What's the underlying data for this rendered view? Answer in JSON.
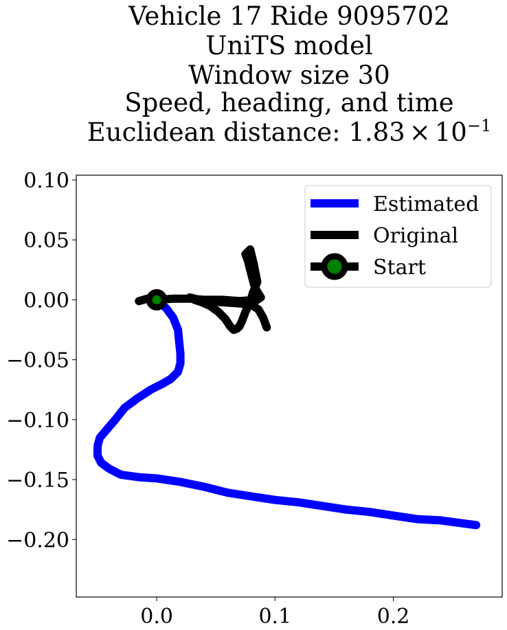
{
  "chart_data": {
    "type": "line",
    "title_lines": [
      "Vehicle 17 Ride 9095702",
      "UniTS model",
      "Window size 30",
      "Speed, heading, and time"
    ],
    "title_distance_prefix": "Euclidean distance: ",
    "title_distance_mantissa": "1.83",
    "title_distance_times": "×",
    "title_distance_base": "10",
    "title_distance_exponent": "−1",
    "xlabel": "",
    "ylabel": "",
    "xlim": [
      -0.068,
      0.292
    ],
    "ylim": [
      -0.248,
      0.104
    ],
    "xticks": [
      {
        "value": 0.0,
        "label": "0.0"
      },
      {
        "value": 0.1,
        "label": "0.1"
      },
      {
        "value": 0.2,
        "label": "0.2"
      }
    ],
    "yticks": [
      {
        "value": 0.1,
        "label": "0.10"
      },
      {
        "value": 0.05,
        "label": "0.05"
      },
      {
        "value": 0.0,
        "label": "0.00"
      },
      {
        "value": -0.05,
        "label": "−0.05"
      },
      {
        "value": -0.1,
        "label": "−0.10"
      },
      {
        "value": -0.15,
        "label": "−0.15"
      },
      {
        "value": -0.2,
        "label": "−0.20"
      }
    ],
    "grid": false,
    "legend_position": "top-right",
    "series": [
      {
        "name": "Estimated",
        "color": "#0000ff",
        "x": [
          0.0,
          0.008,
          0.014,
          0.018,
          0.019,
          0.02,
          0.02,
          0.018,
          0.012,
          0.005,
          -0.005,
          -0.016,
          -0.027,
          -0.035,
          -0.042,
          -0.048,
          -0.05,
          -0.05,
          -0.047,
          -0.04,
          -0.03,
          -0.015,
          0.0,
          0.02,
          0.04,
          0.06,
          0.08,
          0.1,
          0.12,
          0.14,
          0.16,
          0.18,
          0.2,
          0.22,
          0.24,
          0.255,
          0.27
        ],
        "y": [
          0.0,
          -0.007,
          -0.015,
          -0.025,
          -0.035,
          -0.045,
          -0.053,
          -0.06,
          -0.066,
          -0.07,
          -0.075,
          -0.082,
          -0.09,
          -0.1,
          -0.108,
          -0.115,
          -0.122,
          -0.13,
          -0.136,
          -0.141,
          -0.146,
          -0.148,
          -0.149,
          -0.152,
          -0.156,
          -0.161,
          -0.164,
          -0.167,
          -0.169,
          -0.172,
          -0.175,
          -0.177,
          -0.18,
          -0.183,
          -0.184,
          -0.186,
          -0.188
        ]
      },
      {
        "name": "Original",
        "color": "#000000",
        "x": [
          -0.015,
          -0.008,
          0.0,
          0.015,
          0.028,
          0.04,
          0.055,
          0.07,
          0.085,
          0.088,
          0.083,
          0.079,
          0.077,
          0.075,
          0.079,
          0.082,
          0.085,
          0.081,
          0.079,
          0.075,
          0.072,
          0.07,
          0.068,
          0.065,
          0.062,
          0.058,
          0.052,
          0.045,
          0.038,
          0.032,
          0.028,
          0.032,
          0.04,
          0.055,
          0.07,
          0.08,
          0.086,
          0.09,
          0.093
        ],
        "y": [
          -0.001,
          0.001,
          0.0,
          0.001,
          0.001,
          0.0,
          0.0,
          -0.001,
          0.0,
          0.002,
          0.01,
          0.025,
          0.033,
          0.038,
          0.042,
          0.03,
          0.015,
          0.005,
          -0.002,
          -0.01,
          -0.018,
          -0.022,
          -0.024,
          -0.025,
          -0.022,
          -0.016,
          -0.01,
          -0.005,
          -0.002,
          0.0,
          0.002,
          0.001,
          -0.001,
          -0.002,
          -0.003,
          -0.004,
          -0.008,
          -0.015,
          -0.023
        ]
      },
      {
        "name": "Start",
        "color": "#000000",
        "marker_face_color": "#008000",
        "x": [
          0.0
        ],
        "y": [
          0.0
        ]
      }
    ]
  }
}
